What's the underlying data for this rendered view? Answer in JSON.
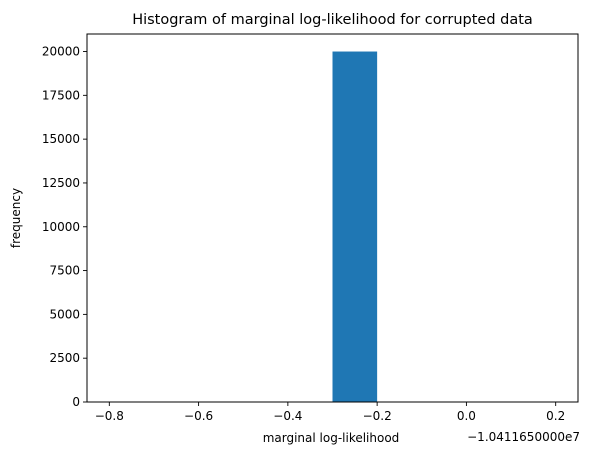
{
  "chart_data": {
    "type": "bar",
    "title": "Histogram of marginal log-likelihood for corrupted data",
    "xlabel": "marginal log-likelihood",
    "ylabel": "frequency",
    "x_offset_label": "−1.0411650000e7",
    "xlim": [
      -0.85,
      0.25
    ],
    "ylim": [
      0,
      21000
    ],
    "x_ticks": [
      -0.8,
      -0.6,
      -0.4,
      -0.2,
      0.0,
      0.2
    ],
    "x_tick_labels": [
      "−0.8",
      "−0.6",
      "−0.4",
      "−0.2",
      "0.0",
      "0.2"
    ],
    "y_ticks": [
      0,
      2500,
      5000,
      7500,
      10000,
      12500,
      15000,
      17500,
      20000
    ],
    "y_tick_labels": [
      "0",
      "2500",
      "5000",
      "7500",
      "10000",
      "12500",
      "15000",
      "17500",
      "20000"
    ],
    "bins": [
      {
        "x0": -0.3,
        "x1": -0.2,
        "count": 20000
      }
    ],
    "bar_color": "#1f77b4",
    "grid": false,
    "legend": "none"
  }
}
